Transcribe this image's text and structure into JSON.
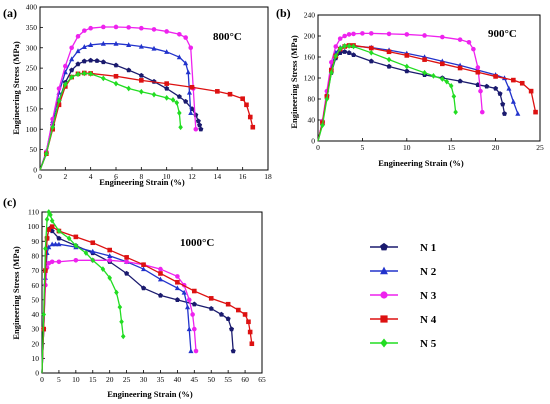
{
  "chart_data": [
    {
      "panel": "(a)",
      "type": "line",
      "annotation": "800°C",
      "xlabel": "Engineering Strain (%)",
      "ylabel": "Engineering Stress (MPa)",
      "xlim": [
        0,
        18
      ],
      "ylim": [
        0,
        400
      ],
      "xticks": [
        0,
        2,
        4,
        6,
        8,
        10,
        12,
        14,
        16,
        18
      ],
      "yticks": [
        0,
        50,
        100,
        150,
        200,
        250,
        300,
        350,
        400
      ],
      "series": [
        {
          "name": "N 1",
          "x": [
            0,
            0.5,
            1,
            1.5,
            2,
            2.5,
            3,
            3.5,
            4,
            4.5,
            5,
            6,
            7,
            8,
            9,
            10,
            11,
            11.5,
            12,
            12.3,
            12.5,
            12.6,
            12.7
          ],
          "y": [
            0,
            40,
            110,
            170,
            215,
            245,
            260,
            267,
            269,
            268,
            265,
            257,
            245,
            232,
            217,
            200,
            180,
            168,
            150,
            135,
            120,
            110,
            100
          ]
        },
        {
          "name": "N 2",
          "x": [
            0,
            0.5,
            1,
            1.5,
            2,
            2.5,
            3,
            3.5,
            4,
            5,
            6,
            7,
            8,
            9,
            10,
            11,
            11.5,
            11.7,
            11.8,
            11.9
          ],
          "y": [
            0,
            45,
            120,
            190,
            240,
            272,
            292,
            302,
            307,
            310,
            310,
            307,
            303,
            298,
            290,
            277,
            262,
            240,
            190,
            140
          ]
        },
        {
          "name": "N 3",
          "x": [
            0,
            0.5,
            1,
            1.5,
            2,
            2.5,
            3,
            3.5,
            4,
            5,
            6,
            7,
            8,
            9,
            10,
            11,
            11.5,
            11.9,
            12.1,
            12.3
          ],
          "y": [
            0,
            45,
            125,
            200,
            255,
            300,
            328,
            342,
            348,
            351,
            351,
            350,
            348,
            345,
            340,
            333,
            325,
            300,
            200,
            100
          ]
        },
        {
          "name": "N 4",
          "x": [
            0,
            0.5,
            1,
            1.5,
            2,
            2.5,
            3,
            3.5,
            4,
            6,
            8,
            10,
            12,
            14,
            15,
            16,
            16.3,
            16.6,
            16.8
          ],
          "y": [
            0,
            40,
            100,
            160,
            205,
            228,
            236,
            238,
            237,
            230,
            220,
            212,
            203,
            193,
            186,
            175,
            160,
            130,
            105
          ]
        },
        {
          "name": "N 5",
          "x": [
            0,
            0.5,
            1,
            1.5,
            2,
            2.5,
            3,
            3.5,
            4,
            5,
            6,
            7,
            8,
            9,
            10,
            10.5,
            10.8,
            11,
            11.1
          ],
          "y": [
            0,
            40,
            105,
            170,
            210,
            228,
            235,
            237,
            236,
            225,
            212,
            200,
            192,
            185,
            177,
            172,
            165,
            140,
            105
          ]
        }
      ]
    },
    {
      "panel": "(b)",
      "type": "line",
      "annotation": "900°C",
      "xlabel": "Engineering Strain (%)",
      "ylabel": "Engineering Stress (MPa)",
      "xlim": [
        0,
        25
      ],
      "ylim": [
        0,
        240
      ],
      "xticks": [
        0,
        5,
        10,
        15,
        20,
        25
      ],
      "yticks": [
        0,
        40,
        80,
        120,
        160,
        200,
        240
      ],
      "series": [
        {
          "name": "N 1",
          "x": [
            0,
            0.5,
            1,
            1.5,
            2,
            2.5,
            3,
            3.5,
            4,
            6,
            8,
            10,
            12,
            14,
            16,
            18,
            19,
            20,
            20.5,
            20.8,
            21
          ],
          "y": [
            0,
            35,
            85,
            130,
            158,
            168,
            170,
            168,
            164,
            152,
            142,
            133,
            126,
            120,
            114,
            107,
            104,
            100,
            90,
            70,
            52
          ]
        },
        {
          "name": "N 2",
          "x": [
            0,
            0.5,
            1,
            1.5,
            2,
            2.5,
            3,
            3.5,
            4,
            6,
            8,
            10,
            12,
            14,
            16,
            18,
            20,
            21,
            21.5,
            22,
            22.5
          ],
          "y": [
            0,
            35,
            90,
            140,
            168,
            178,
            181,
            182,
            181,
            178,
            173,
            167,
            160,
            152,
            144,
            135,
            126,
            120,
            100,
            75,
            52
          ]
        },
        {
          "name": "N 3",
          "x": [
            0,
            0.5,
            1,
            1.5,
            2,
            2.5,
            3,
            3.5,
            4,
            5,
            6,
            8,
            10,
            12,
            14,
            16,
            17,
            17.5,
            18,
            18.3,
            18.5
          ],
          "y": [
            0,
            38,
            95,
            150,
            180,
            195,
            200,
            203,
            204,
            205,
            205,
            204,
            203,
            201,
            198,
            193,
            188,
            175,
            140,
            95,
            55
          ]
        },
        {
          "name": "N 4",
          "x": [
            0,
            0.5,
            1,
            1.5,
            2,
            2.5,
            3,
            3.5,
            4,
            6,
            8,
            10,
            12,
            14,
            16,
            18,
            20,
            22,
            23,
            24,
            24.5
          ],
          "y": [
            0,
            35,
            85,
            135,
            162,
            175,
            180,
            182,
            182,
            177,
            170,
            163,
            155,
            147,
            139,
            131,
            123,
            116,
            110,
            95,
            55
          ]
        },
        {
          "name": "N 5",
          "x": [
            0,
            0.5,
            1,
            1.5,
            2,
            2.5,
            3,
            3.5,
            4,
            6,
            8,
            10,
            12,
            13,
            14,
            14.5,
            15,
            15.3,
            15.5
          ],
          "y": [
            0,
            30,
            80,
            130,
            162,
            176,
            181,
            181,
            180,
            168,
            155,
            142,
            130,
            124,
            118,
            113,
            105,
            85,
            55
          ]
        }
      ]
    },
    {
      "panel": "(c)",
      "type": "line",
      "annotation": "1000°C",
      "xlabel": "Engineering Strain (%)",
      "ylabel": "Engineering Stress (MPa)",
      "xlim": [
        0,
        65
      ],
      "ylim": [
        0,
        110
      ],
      "xticks": [
        0,
        5,
        10,
        15,
        20,
        25,
        30,
        35,
        40,
        45,
        50,
        55,
        60,
        65
      ],
      "yticks": [
        0,
        10,
        20,
        30,
        40,
        50,
        60,
        70,
        80,
        90,
        100,
        110
      ],
      "series": [
        {
          "name": "N 1",
          "x": [
            0,
            0.5,
            1,
            1.5,
            2,
            2.5,
            3,
            5,
            10,
            15,
            20,
            25,
            30,
            35,
            40,
            45,
            50,
            53,
            55,
            56,
            56.5
          ],
          "y": [
            0,
            30,
            70,
            92,
            98,
            99,
            97,
            92,
            87,
            82,
            76,
            68,
            58,
            53,
            50,
            47,
            44,
            40,
            37,
            30,
            15
          ]
        },
        {
          "name": "N 2",
          "x": [
            0,
            0.5,
            1,
            1.5,
            2,
            3,
            4,
            5,
            10,
            15,
            20,
            25,
            30,
            35,
            40,
            42,
            43,
            43.5,
            44
          ],
          "y": [
            0,
            30,
            65,
            82,
            86,
            88,
            88,
            88,
            86,
            83,
            80,
            76,
            71,
            64,
            58,
            55,
            45,
            30,
            15
          ]
        },
        {
          "name": "N 3",
          "x": [
            0,
            0.5,
            1,
            1.5,
            2,
            3,
            5,
            10,
            15,
            20,
            25,
            30,
            35,
            40,
            42,
            43.5,
            44.5,
            45,
            45.5
          ],
          "y": [
            0,
            30,
            60,
            72,
            75,
            76,
            76,
            77,
            77,
            77,
            76,
            74,
            71,
            66,
            60,
            50,
            40,
            30,
            15
          ]
        },
        {
          "name": "N 4",
          "x": [
            0,
            0.5,
            1,
            1.5,
            2,
            3,
            5,
            10,
            15,
            20,
            25,
            30,
            35,
            40,
            45,
            50,
            55,
            58,
            60,
            61,
            61.5,
            62
          ],
          "y": [
            0,
            30,
            70,
            92,
            98,
            100,
            97,
            93,
            89,
            84,
            79,
            74,
            68,
            62,
            56,
            51,
            47,
            43,
            40,
            35,
            28,
            20
          ]
        },
        {
          "name": "N 5",
          "x": [
            0,
            0.5,
            1,
            1.5,
            2,
            2.5,
            3,
            5,
            8,
            10,
            13,
            15,
            18,
            20,
            22,
            23,
            23.5,
            24
          ],
          "y": [
            0,
            40,
            85,
            105,
            110,
            108,
            104,
            97,
            92,
            87,
            82,
            77,
            71,
            65,
            55,
            45,
            35,
            25
          ]
        }
      ]
    }
  ],
  "colors": {
    "N 1": "#1a1a6e",
    "N 2": "#2233cc",
    "N 3": "#ee22ee",
    "N 4": "#dd1111",
    "N 5": "#22dd22"
  },
  "markers": {
    "N 1": "pentagon",
    "N 2": "triangle",
    "N 3": "circle",
    "N 4": "square",
    "N 5": "diamond"
  },
  "legend": {
    "placement": "bottom-right",
    "entries": [
      "N 1",
      "N 2",
      "N 3",
      "N 4",
      "N 5"
    ]
  }
}
